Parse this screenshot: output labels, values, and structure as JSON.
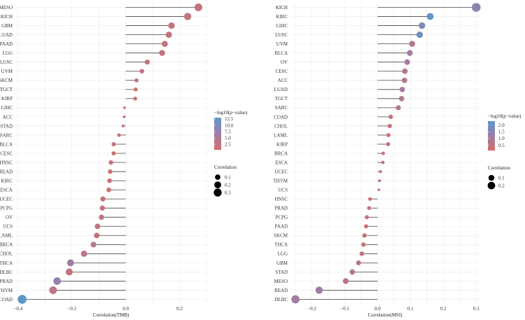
{
  "chart_data": [
    {
      "type": "lollipop",
      "xlabel": "Correlation(TMB)",
      "xlim": [
        -0.41,
        0.3
      ],
      "xticks": [
        -0.4,
        -0.2,
        0.0,
        0.2
      ],
      "xtick_labels": [
        "−0.4",
        "−0.2",
        "0.0",
        "0.2"
      ],
      "grid": true,
      "categories": [
        "MESO",
        "KICH",
        "GBM",
        "LUAD",
        "PAAD",
        "LGG",
        "LUSC",
        "UVM",
        "SKCM",
        "TGCT",
        "KIRP",
        "LIHC",
        "ACC",
        "STAD",
        "SARC",
        "BLCA",
        "CESC",
        "HNSC",
        "READ",
        "KIRC",
        "ESCA",
        "UCEC",
        "PCPG",
        "OV",
        "UCS",
        "LAML",
        "BRCA",
        "CHOL",
        "THCA",
        "DLBC",
        "PRAD",
        "THYM",
        "COAD"
      ],
      "values": [
        0.27,
        0.23,
        0.17,
        0.16,
        0.145,
        0.135,
        0.08,
        0.06,
        0.04,
        0.037,
        0.035,
        -0.005,
        -0.006,
        -0.01,
        -0.025,
        -0.045,
        -0.045,
        -0.055,
        -0.058,
        -0.06,
        -0.063,
        -0.085,
        -0.087,
        -0.09,
        -0.105,
        -0.108,
        -0.12,
        -0.155,
        -0.205,
        -0.21,
        -0.255,
        -0.27,
        -0.385
      ],
      "neglog10p": [
        2.5,
        2.5,
        2.5,
        2.5,
        2.5,
        2.5,
        2.2,
        2.0,
        1.8,
        1.6,
        1.5,
        0.5,
        0.4,
        0.5,
        0.8,
        1.2,
        1.3,
        1.5,
        1.5,
        1.6,
        1.6,
        2.0,
        2.0,
        2.1,
        2.5,
        2.5,
        4.5,
        3.0,
        6.5,
        2.5,
        7.5,
        3.0,
        13.0
      ],
      "legend": {
        "color_title": "−log10(p−value)",
        "color_ticks": [
          12.5,
          10.0,
          7.5,
          5.0,
          2.5
        ],
        "color_tick_labels": [
          "12.5",
          "10.0",
          "7.5",
          "5.0",
          "2.5"
        ],
        "color_range": [
          0.3,
          13.0
        ],
        "size_title": "Correlation",
        "size_values": [
          0.1,
          0.2,
          0.3
        ],
        "size_labels": [
          "0.1",
          "0.2",
          "0.3"
        ]
      }
    },
    {
      "type": "lollipop",
      "xlabel": "Correlation(MSI)",
      "xlim": [
        -0.265,
        0.31
      ],
      "xticks": [
        -0.2,
        -0.1,
        0.0,
        0.1,
        0.2,
        0.3
      ],
      "xtick_labels": [
        "−0.2",
        "−0.1",
        "0.0",
        "0.1",
        "0.2",
        "0.3"
      ],
      "grid": true,
      "categories": [
        "KICH",
        "KIRC",
        "LIHC",
        "LUSC",
        "UVM",
        "BLCA",
        "OV",
        "CESC",
        "ACC",
        "LUAD",
        "TGCT",
        "SARC",
        "COAD",
        "CHOL",
        "LAML",
        "KIRP",
        "BRCA",
        "ESCA",
        "UCEC",
        "THYM",
        "UCS",
        "HNSC",
        "PRAD",
        "PCPG",
        "PAAD",
        "SKCM",
        "THCA",
        "LGG",
        "GBM",
        "STAD",
        "MESO",
        "READ",
        "DLBC"
      ],
      "values": [
        0.3,
        0.16,
        0.135,
        0.128,
        0.105,
        0.098,
        0.09,
        0.083,
        0.082,
        0.075,
        0.073,
        0.063,
        0.04,
        0.037,
        0.033,
        0.032,
        0.017,
        0.016,
        0.009,
        0.006,
        0.004,
        -0.023,
        -0.026,
        -0.033,
        -0.035,
        -0.04,
        -0.043,
        -0.048,
        -0.058,
        -0.077,
        -0.097,
        -0.178,
        -0.25
      ],
      "neglog10p": [
        1.5,
        2.2,
        1.7,
        2.0,
        0.8,
        1.1,
        1.0,
        0.8,
        0.8,
        1.0,
        0.8,
        0.7,
        0.4,
        0.4,
        0.3,
        0.3,
        0.3,
        0.3,
        0.2,
        0.2,
        0.2,
        0.3,
        0.3,
        0.3,
        0.3,
        0.4,
        0.4,
        0.4,
        0.6,
        0.8,
        0.5,
        1.2,
        1.1
      ],
      "legend": {
        "color_title": "−log10(p−value)",
        "color_ticks": [
          2.0,
          1.5,
          1.0,
          0.5
        ],
        "color_tick_labels": [
          "2.0",
          "1.5",
          "1.0",
          "0.5"
        ],
        "color_range": [
          0.1,
          2.3
        ],
        "size_title": "Correlation",
        "size_values": [
          0.1,
          0.2
        ],
        "size_labels": [
          "0.1",
          "0.2"
        ]
      }
    }
  ],
  "colors": {
    "low": "#d46f6b",
    "mid": "#9d7ea6",
    "high": "#5e98c9",
    "grid": "#ebebeb",
    "stem": "#444444"
  }
}
